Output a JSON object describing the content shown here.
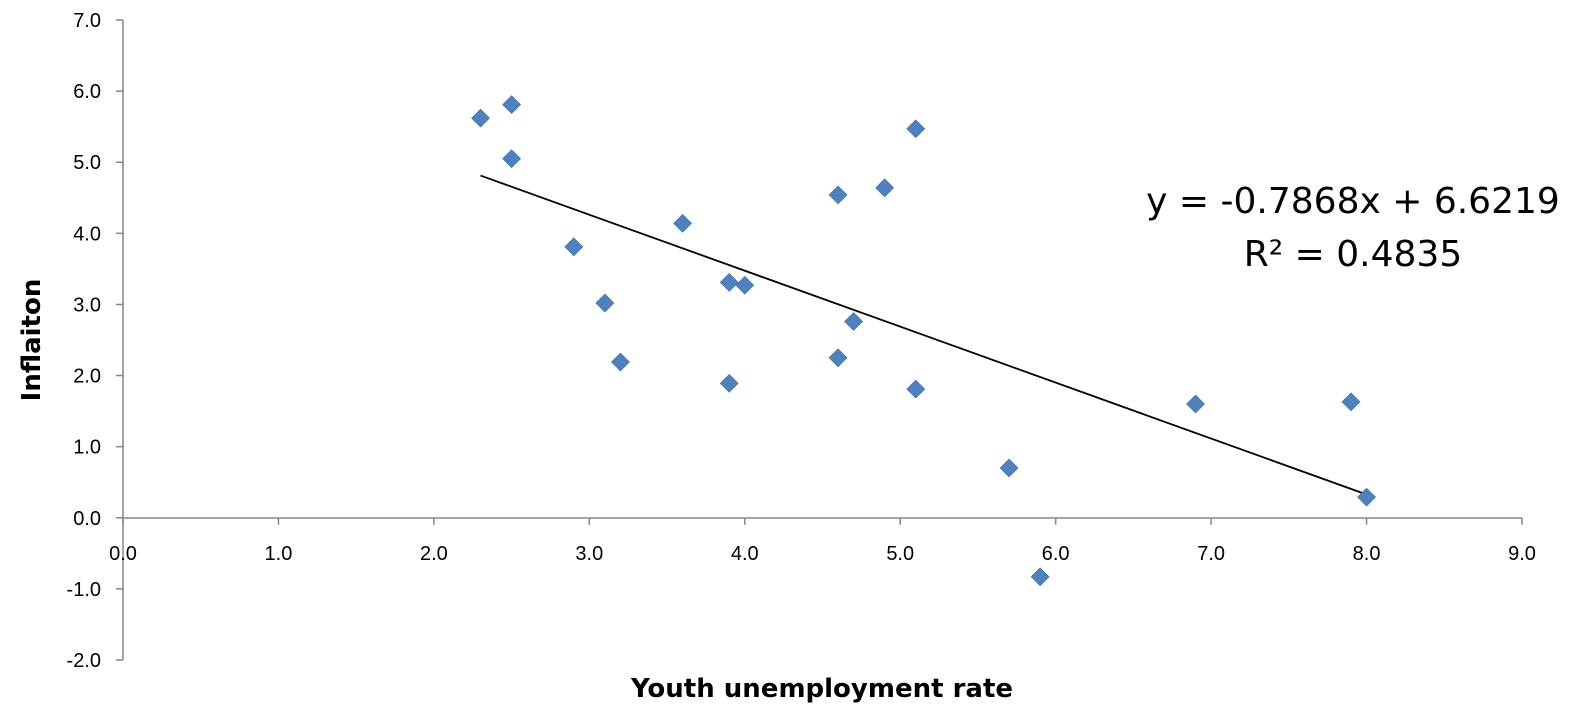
{
  "chart_data": {
    "type": "scatter",
    "title": "",
    "xlabel": "Youth unemployment rate",
    "ylabel": "Inflaiton",
    "xlim": [
      0,
      9
    ],
    "ylim": [
      -2,
      7
    ],
    "x_ticks": [
      "0.0",
      "1.0",
      "2.0",
      "3.0",
      "4.0",
      "5.0",
      "6.0",
      "7.0",
      "8.0",
      "9.0"
    ],
    "y_ticks": [
      "-2.0",
      "-1.0",
      "0.0",
      "1.0",
      "2.0",
      "3.0",
      "4.0",
      "5.0",
      "6.0",
      "7.0"
    ],
    "grid": false,
    "legend": "none",
    "marker": "diamond",
    "marker_color": "#4F81BD",
    "series": [
      {
        "points": [
          {
            "x": 2.3,
            "y": 5.62
          },
          {
            "x": 2.5,
            "y": 5.81
          },
          {
            "x": 2.5,
            "y": 5.05
          },
          {
            "x": 2.9,
            "y": 3.81
          },
          {
            "x": 3.1,
            "y": 3.02
          },
          {
            "x": 3.2,
            "y": 2.19
          },
          {
            "x": 3.6,
            "y": 4.14
          },
          {
            "x": 3.9,
            "y": 3.31
          },
          {
            "x": 4.0,
            "y": 3.27
          },
          {
            "x": 3.9,
            "y": 1.89
          },
          {
            "x": 4.6,
            "y": 4.54
          },
          {
            "x": 4.6,
            "y": 2.25
          },
          {
            "x": 4.7,
            "y": 2.76
          },
          {
            "x": 4.9,
            "y": 4.64
          },
          {
            "x": 5.1,
            "y": 5.47
          },
          {
            "x": 5.1,
            "y": 1.81
          },
          {
            "x": 5.7,
            "y": 0.7
          },
          {
            "x": 5.9,
            "y": -0.83
          },
          {
            "x": 6.9,
            "y": 1.6
          },
          {
            "x": 7.9,
            "y": 1.63
          },
          {
            "x": 8.0,
            "y": 0.29
          }
        ]
      }
    ],
    "trendline": {
      "type": "linear",
      "slope": -0.7868,
      "intercept": 6.6219,
      "x_range": [
        2.3,
        8.0
      ],
      "color": "#000000"
    },
    "annotations": {
      "equation": "y = -0.7868x + 6.6219",
      "r_squared": "R² = 0.4835"
    }
  }
}
